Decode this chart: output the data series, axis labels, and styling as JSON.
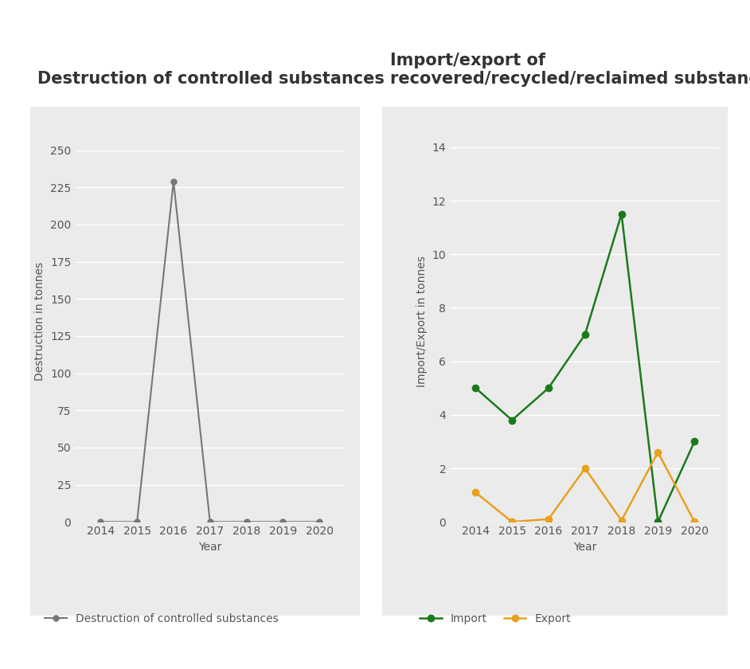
{
  "chart1": {
    "title": "Destruction of controlled substances",
    "years": [
      2014,
      2015,
      2016,
      2017,
      2018,
      2019,
      2020
    ],
    "destruction": [
      0,
      0,
      229,
      0,
      0,
      0,
      0
    ],
    "ylabel": "Destruction in tonnes",
    "xlabel": "Year",
    "line_color": "#777777",
    "marker_color": "#777777",
    "legend_label": "Destruction of controlled substances",
    "ylim": [
      0,
      270
    ],
    "yticks": [
      0,
      25,
      50,
      75,
      100,
      125,
      150,
      175,
      200,
      225,
      250
    ],
    "bg_color": "#ebebeb",
    "title_color": "#333333"
  },
  "chart2": {
    "title": "Import/export of\nrecovered/recycled/reclaimed substances",
    "years": [
      2014,
      2015,
      2016,
      2017,
      2018,
      2019,
      2020
    ],
    "import_values": [
      5.0,
      3.8,
      5.0,
      7.0,
      11.5,
      0.0,
      3.0
    ],
    "export_values": [
      1.1,
      0.0,
      0.1,
      2.0,
      0.05,
      2.6,
      0.0
    ],
    "ylabel": "Import/Export in tonnes",
    "xlabel": "Year",
    "import_color": "#1a7a1a",
    "export_color": "#e8a020",
    "legend_import": "Import",
    "legend_export": "Export",
    "ylim": [
      0,
      15
    ],
    "yticks": [
      0,
      2,
      4,
      6,
      8,
      10,
      12,
      14
    ],
    "bg_color": "#ebebeb",
    "title_color": "#333333"
  },
  "fig_bg_color": "#ffffff",
  "title_fontsize": 15,
  "axis_label_fontsize": 10,
  "tick_fontsize": 10,
  "legend_fontsize": 10
}
